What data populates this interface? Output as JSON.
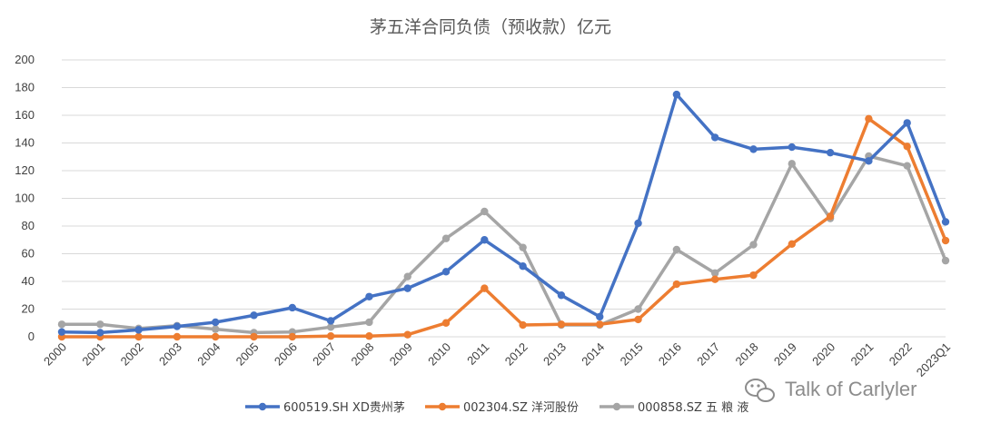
{
  "chart_data": {
    "type": "line",
    "title": "茅五洋合同负债（预收款）亿元",
    "xlabel": "",
    "ylabel": "",
    "ylim": [
      0,
      200
    ],
    "yticks": [
      0,
      20,
      40,
      60,
      80,
      100,
      120,
      140,
      160,
      180,
      200
    ],
    "grid": true,
    "legend_position": "bottom",
    "categories": [
      "2000",
      "2001",
      "2002",
      "2003",
      "2004",
      "2005",
      "2006",
      "2007",
      "2008",
      "2009",
      "2010",
      "2011",
      "2012",
      "2013",
      "2014",
      "2015",
      "2016",
      "2017",
      "2018",
      "2019",
      "2020",
      "2021",
      "2022",
      "2023Q1"
    ],
    "series": [
      {
        "name": "600519.SH XD贵州茅",
        "color": "#4472c4",
        "values": [
          3.5,
          3,
          5,
          7.5,
          10.5,
          15.5,
          21,
          11.5,
          29,
          35,
          47,
          70,
          51,
          30,
          14.5,
          82,
          175,
          144,
          135.5,
          137,
          133,
          127,
          154.5,
          83
        ]
      },
      {
        "name": "002304.SZ 洋河股份",
        "color": "#ed7d31",
        "values": [
          0,
          0,
          0,
          0,
          0,
          0,
          0,
          0.5,
          0.5,
          1.5,
          10,
          35,
          8.5,
          9,
          9,
          12.5,
          38,
          41.5,
          44.5,
          67,
          87,
          157.5,
          137.5,
          69.5
        ]
      },
      {
        "name": "000858.SZ 五 粮 液",
        "color": "#a5a5a5",
        "values": [
          9,
          9,
          6,
          8,
          5.5,
          3,
          3.5,
          7,
          10.5,
          43.5,
          71,
          90.5,
          64.5,
          8.5,
          8.5,
          20,
          63,
          46,
          66.5,
          125,
          85.5,
          130.5,
          123.5,
          55
        ]
      }
    ]
  },
  "watermark": {
    "text": "Talk of Carlyler",
    "icon": "wechat-icon"
  }
}
